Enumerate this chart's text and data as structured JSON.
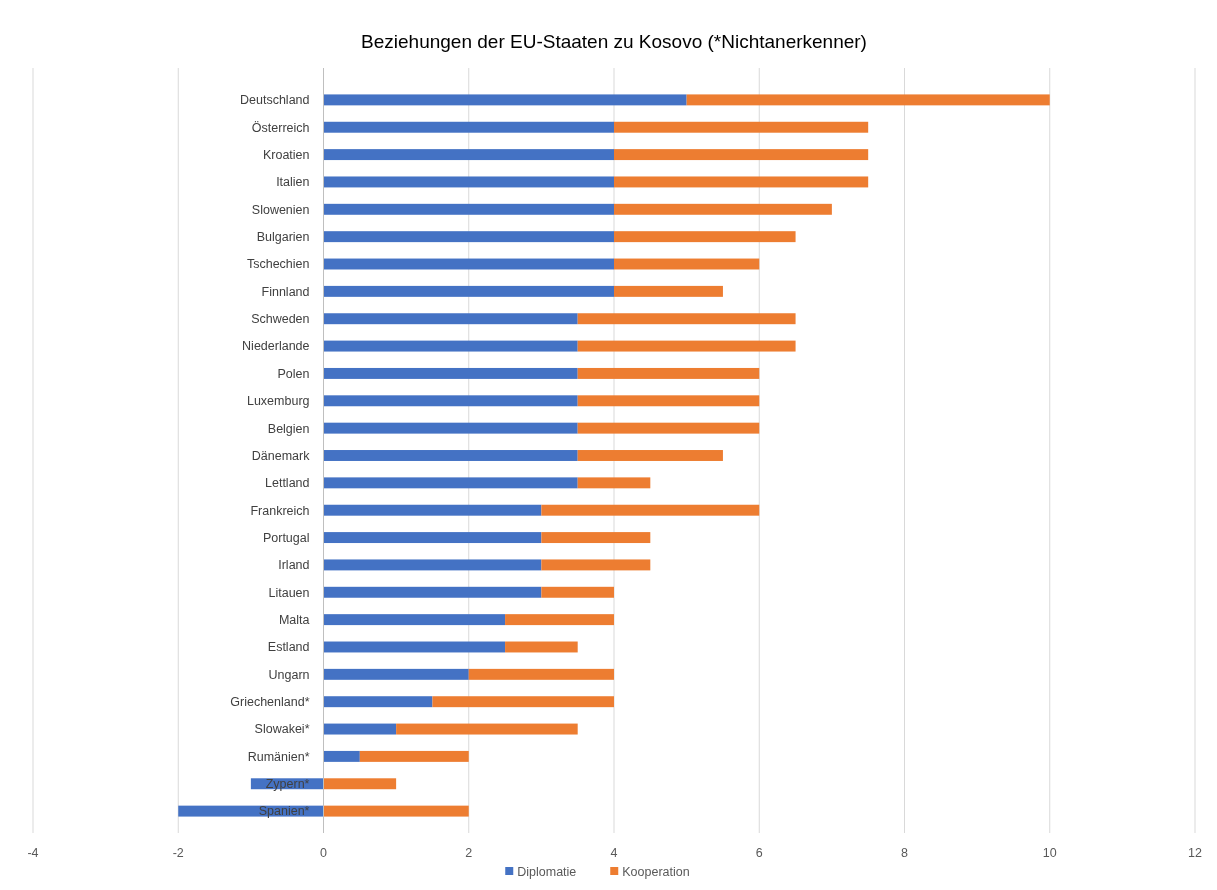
{
  "chart_data": {
    "type": "bar",
    "orientation": "horizontal",
    "stacked": true,
    "title": "Beziehungen der EU-Staaten zu Kosovo (*Nichtanerkenner)",
    "categories": [
      "Deutschland",
      "Österreich",
      "Kroatien",
      "Italien",
      "Slowenien",
      "Bulgarien",
      "Tschechien",
      "Finnland",
      "Schweden",
      "Niederlande",
      "Polen",
      "Luxemburg",
      "Belgien",
      "Dänemark",
      "Lettland",
      "Frankreich",
      "Portugal",
      "Irland",
      "Litauen",
      "Malta",
      "Estland",
      "Ungarn",
      "Griechenland*",
      "Slowakei*",
      "Rumänien*",
      "Zypern*",
      "Spanien*"
    ],
    "series": [
      {
        "name": "Diplomatie",
        "color": "#4472c4",
        "values": [
          5,
          4,
          4,
          4,
          4,
          4,
          4,
          4,
          3.5,
          3.5,
          3.5,
          3.5,
          3.5,
          3.5,
          3.5,
          3,
          3,
          3,
          3,
          2.5,
          2.5,
          2,
          1.5,
          1,
          0.5,
          -1,
          -2
        ]
      },
      {
        "name": "Kooperation",
        "color": "#ed7d31",
        "values": [
          5,
          3.5,
          3.5,
          3.5,
          3,
          2.5,
          2,
          1.5,
          3,
          3,
          2.5,
          2.5,
          2.5,
          2,
          1,
          3,
          1.5,
          1.5,
          1,
          1.5,
          1,
          2,
          2.5,
          2.5,
          1.5,
          1,
          2
        ]
      }
    ],
    "xlim": [
      -4,
      12
    ],
    "xticks": [
      -4,
      -2,
      0,
      2,
      4,
      6,
      8,
      10,
      12
    ],
    "grid": "x",
    "legend": "bottom"
  }
}
